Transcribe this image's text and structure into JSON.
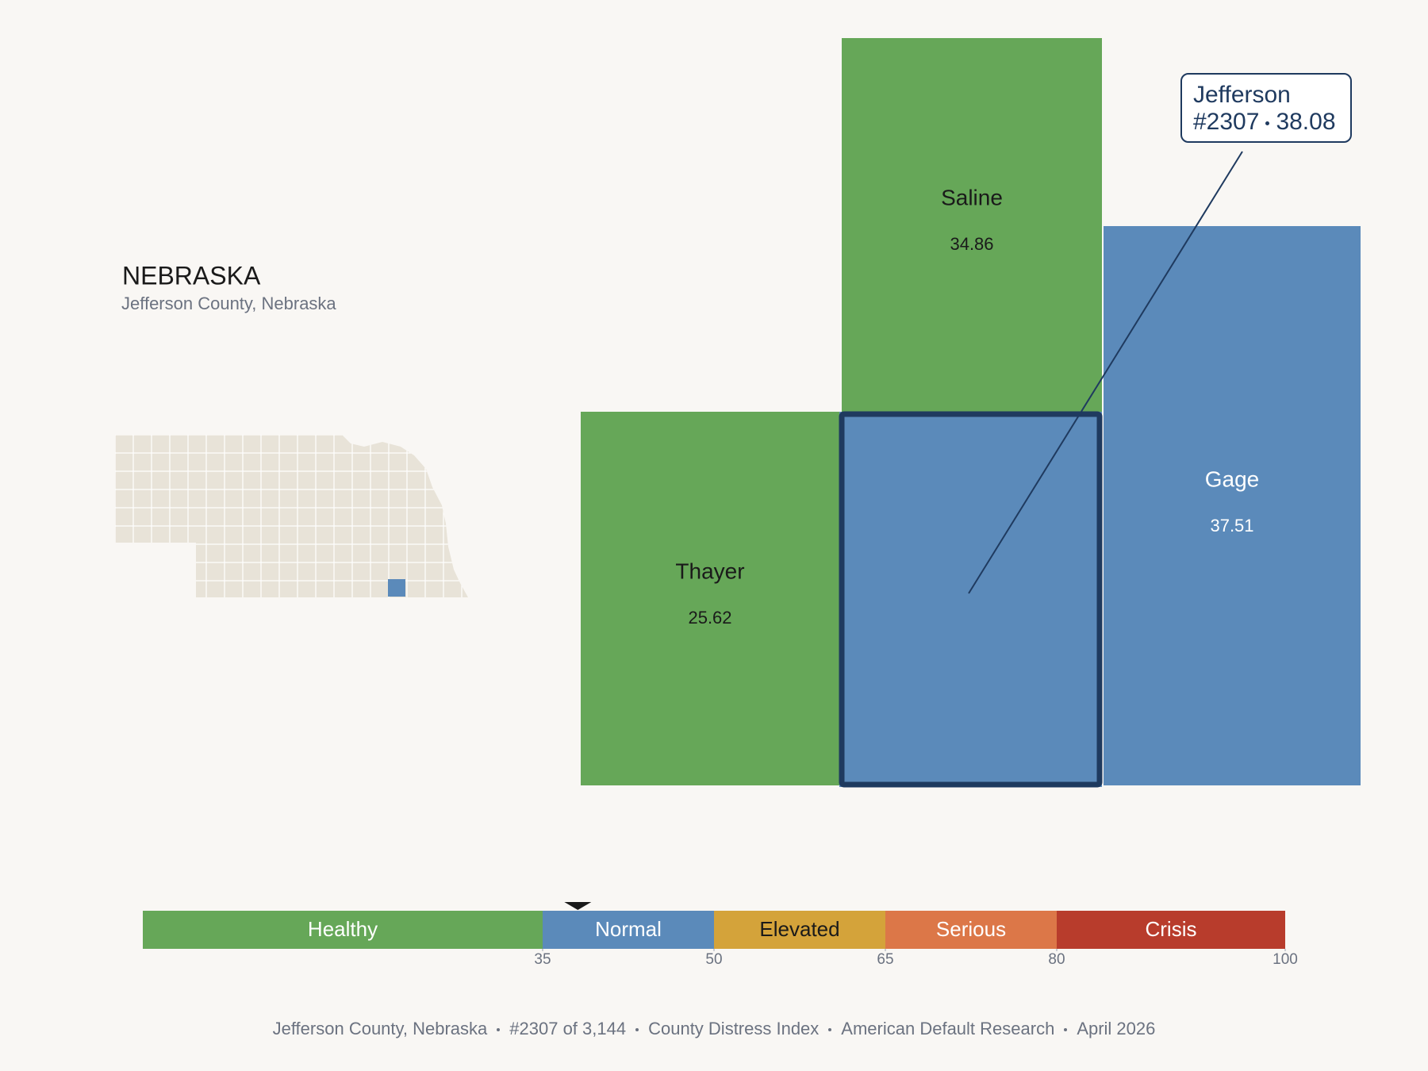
{
  "header": {
    "title": "NEBRASKA",
    "subtitle": "Jefferson County, Nebraska"
  },
  "counties": [
    {
      "name": "Saline",
      "value": 34.86,
      "color": "#66a758"
    },
    {
      "name": "Gage",
      "value": 37.51,
      "color": "#5b8aba"
    },
    {
      "name": "Thayer",
      "value": 25.62,
      "color": "#66a758"
    },
    {
      "name": "Jefferson",
      "value": 38.08,
      "color": "#5b8aba"
    }
  ],
  "callout": {
    "rank": "#2307"
  },
  "legend": {
    "xlim": [
      0,
      100
    ],
    "xticks": [
      35,
      50,
      65,
      80,
      100
    ],
    "bands": [
      {
        "label": "Healthy",
        "color": "#66a758"
      },
      {
        "label": "Normal",
        "color": "#5b8aba"
      },
      {
        "label": "Elevated",
        "color": "#d4a33a"
      },
      {
        "label": "Serious",
        "color": "#dc7748"
      },
      {
        "label": "Crisis",
        "color": "#b83c2c"
      }
    ]
  },
  "footer": [
    "Jefferson County, Nebraska",
    "#2307 of 3,144",
    "County Distress Index",
    "American Default Research",
    "April 2026"
  ]
}
